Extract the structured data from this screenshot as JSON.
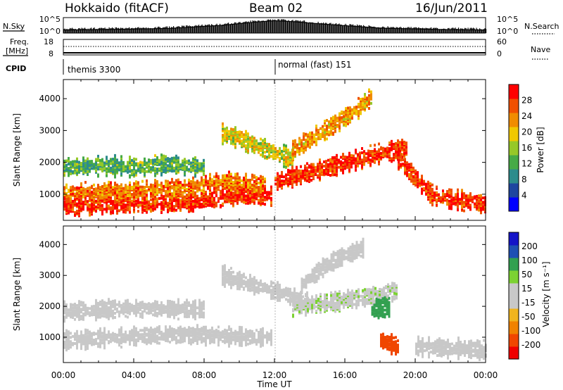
{
  "header": {
    "station": "Hokkaido (fitACF)",
    "beam": "Beam 02",
    "date": "16/Jun/2011"
  },
  "strip": {
    "nsky_label": "N.Sky",
    "nsearch_label": "N.Search",
    "freq_label_1": "Freq.",
    "freq_label_2": "[MHz]",
    "nave_label": "Nave",
    "cpid_label": "CPID",
    "noise_ticks": [
      "10^5",
      "10^0"
    ],
    "freq_ticks": [
      "18",
      "8"
    ],
    "nave_ticks": [
      "60",
      "0"
    ],
    "cpid_segments": [
      "themis 3300",
      "normal (fast) 151"
    ]
  },
  "colors": {
    "power_scale": [
      "#0000ff",
      "#1e46a0",
      "#2d8c8c",
      "#46aa46",
      "#96c828",
      "#f0c800",
      "#f08c00",
      "#f05000",
      "#ff0000"
    ],
    "velocity_scale": [
      "#1414c8",
      "#1e50b4",
      "#32a050",
      "#7cd232",
      "#c8c8c8",
      "#c8c8c8",
      "#f0b41e",
      "#f08200",
      "#f04600",
      "#f00000"
    ],
    "ground_scatter": "#c8c8c8"
  },
  "chart_data": [
    {
      "type": "heatmap",
      "panel": "power",
      "ylabel": "Slant Range [km]",
      "ylim": [
        180,
        4600
      ],
      "yticks": [
        "1000",
        "2000",
        "3000",
        "4000"
      ],
      "xticks": [
        "00:00",
        "04:00",
        "08:00",
        "12:00",
        "16:00",
        "20:00",
        "00:00"
      ],
      "colorbar": {
        "title": "Power [dB]",
        "ticks": [
          "4",
          "8",
          "12",
          "16",
          "20",
          "24",
          "28"
        ],
        "range": [
          0,
          30
        ]
      },
      "bands": [
        {
          "t": [
            0,
            4,
            8,
            10,
            11.8
          ],
          "r": [
            650,
            700,
            800,
            1000,
            950
          ],
          "level": 27
        },
        {
          "t": [
            0,
            4,
            7,
            9,
            11.5
          ],
          "r": [
            1050,
            1100,
            1200,
            1400,
            1300
          ],
          "level": 23
        },
        {
          "t": [
            0,
            2,
            4,
            6,
            8
          ],
          "r": [
            1850,
            1900,
            1850,
            1950,
            1850
          ],
          "level": 12
        },
        {
          "t": [
            9,
            10,
            11,
            12,
            13
          ],
          "r": [
            2900,
            2750,
            2500,
            2300,
            2100
          ],
          "level": 17
        },
        {
          "t": [
            12,
            14,
            16,
            18,
            19.5
          ],
          "r": [
            1400,
            1700,
            2000,
            2300,
            2450
          ],
          "level": 27
        },
        {
          "t": [
            13,
            14.5,
            16.5,
            17.5
          ],
          "r": [
            2400,
            2900,
            3600,
            4100
          ],
          "level": 21
        },
        {
          "t": [
            19,
            20,
            21,
            24
          ],
          "r": [
            2100,
            1500,
            950,
            700
          ],
          "level": 27
        }
      ]
    },
    {
      "type": "heatmap",
      "panel": "velocity",
      "ylabel": "Slant Range [km]",
      "xlabel": "Time UT",
      "ylim": [
        180,
        4600
      ],
      "yticks": [
        "1000",
        "2000",
        "3000",
        "4000"
      ],
      "xticks": [
        "00:00",
        "04:00",
        "08:00",
        "12:00",
        "16:00",
        "20:00",
        "00:00"
      ],
      "colorbar": {
        "title": "Velocity [m s⁻¹]",
        "ticks": [
          "200",
          "100",
          "50",
          "15",
          "-15",
          "-50",
          "-100",
          "-200"
        ],
        "range": [
          -250,
          250
        ]
      },
      "bands": [
        {
          "t": [
            0,
            6,
            11.8
          ],
          "r": [
            900,
            1100,
            1000
          ],
          "level": 0
        },
        {
          "t": [
            0,
            4,
            8
          ],
          "r": [
            1850,
            1950,
            1900
          ],
          "level": 0
        },
        {
          "t": [
            9,
            12,
            14
          ],
          "r": [
            3000,
            2500,
            2100
          ],
          "level": 0
        },
        {
          "t": [
            13,
            16,
            19
          ],
          "r": [
            2000,
            2200,
            2500
          ],
          "level": 5
        },
        {
          "t": [
            17.5,
            18.5
          ],
          "r": [
            1900,
            2000
          ],
          "level": 55
        },
        {
          "t": [
            13.5,
            15,
            17
          ],
          "r": [
            2700,
            3400,
            3900
          ],
          "level": 0
        },
        {
          "t": [
            18,
            19
          ],
          "r": [
            900,
            700
          ],
          "level": -90
        },
        {
          "t": [
            20,
            24
          ],
          "r": [
            700,
            600
          ],
          "level": 0
        }
      ]
    },
    {
      "type": "line",
      "panel": "noise",
      "series": [
        {
          "name": "N.Sky",
          "x": [
            0,
            3,
            6,
            9,
            11,
            12,
            13,
            15,
            18,
            21,
            24
          ],
          "values": [
            1,
            1.2,
            1.5,
            2.5,
            3.6,
            4.0,
            3.7,
            2.8,
            1.6,
            1.2,
            1
          ]
        }
      ],
      "ylim": [
        0,
        5
      ]
    }
  ]
}
